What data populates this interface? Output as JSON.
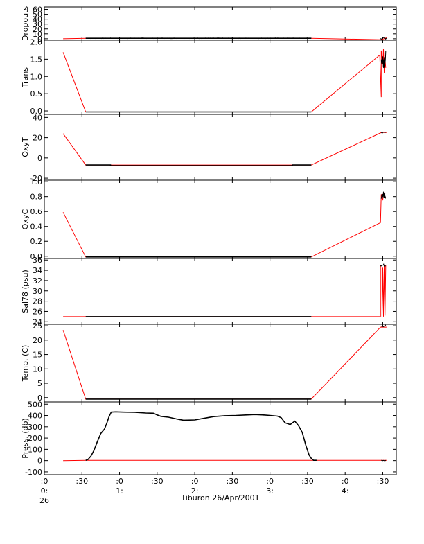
{
  "chart_data": {
    "type": "line",
    "title": "",
    "xlabel": "Tiburon 26/Apr/2001",
    "x_unit": "hours",
    "xlim": [
      0,
      4.68
    ],
    "x_ticks": [
      {
        "x": 0.0,
        "label": [
          ":0",
          "0:",
          "26"
        ]
      },
      {
        "x": 0.5,
        "label": [
          ":30"
        ]
      },
      {
        "x": 1.0,
        "label": [
          ":0",
          "1:"
        ]
      },
      {
        "x": 1.5,
        "label": [
          ":30"
        ]
      },
      {
        "x": 2.0,
        "label": [
          ":0",
          "2:"
        ]
      },
      {
        "x": 2.5,
        "label": [
          ":30"
        ]
      },
      {
        "x": 3.0,
        "label": [
          ":0",
          "3:"
        ]
      },
      {
        "x": 3.5,
        "label": [
          ":30"
        ]
      },
      {
        "x": 4.0,
        "label": [
          ":0",
          "4:"
        ]
      },
      {
        "x": 4.5,
        "label": [
          ":30"
        ]
      }
    ],
    "grid": false,
    "colors": {
      "measured": "#000000",
      "interpolated": "#ff0000"
    },
    "panels": [
      {
        "ylabel": "Dropouts",
        "ylim": [
          -3,
          65
        ],
        "yticks": [
          0,
          10,
          20,
          30,
          40,
          50,
          60
        ],
        "yticklabels": [
          "0",
          "10",
          "20",
          "30",
          "40",
          "50",
          "60"
        ],
        "interpolated": [
          [
            0.25,
            0
          ],
          [
            0.55,
            1
          ],
          [
            3.55,
            1
          ],
          [
            4.48,
            -2
          ],
          [
            4.55,
            2
          ]
        ],
        "measured": [
          [
            0.55,
            1
          ],
          [
            3.55,
            1
          ]
        ],
        "noise": {
          "x0": 0.55,
          "x1": 3.55,
          "base": 1,
          "amp": 0.8,
          "n": 300
        },
        "burst": {
          "x0": 4.46,
          "x1": 4.55,
          "base": 1,
          "amp": 2,
          "n": 12
        }
      },
      {
        "ylabel": "Trans",
        "ylim": [
          -0.1,
          2.05
        ],
        "yticks": [
          0,
          0.5,
          1.0,
          1.5,
          2.0
        ],
        "yticklabels": [
          "0.0",
          "0.5",
          "1.0",
          "1.5",
          "2.0"
        ],
        "interpolated": [
          [
            0.25,
            1.7
          ],
          [
            0.55,
            -0.03
          ],
          [
            3.55,
            -0.03
          ],
          [
            4.46,
            1.62
          ],
          [
            4.48,
            0.4
          ],
          [
            4.48,
            1.75
          ],
          [
            4.5,
            1.35
          ],
          [
            4.51,
            1.8
          ],
          [
            4.52,
            1.1
          ],
          [
            4.53,
            1.5
          ],
          [
            4.54,
            1.25
          ]
        ],
        "measured": [
          [
            0.55,
            -0.03
          ],
          [
            3.55,
            -0.03
          ]
        ],
        "burst": {
          "x0": 4.48,
          "x1": 4.54,
          "base": 1.5,
          "amp": 0.25,
          "n": 20
        }
      },
      {
        "ylabel": "OxyT",
        "ylim": [
          -22,
          43
        ],
        "yticks": [
          -20,
          0,
          20,
          40
        ],
        "yticklabels": [
          "-20",
          "0",
          "20",
          "40"
        ],
        "interpolated": [
          [
            0.25,
            24
          ],
          [
            0.55,
            -7
          ],
          [
            3.55,
            -7
          ],
          [
            4.48,
            25
          ],
          [
            4.55,
            25
          ]
        ],
        "measured": [
          [
            0.55,
            -7
          ],
          [
            0.88,
            -7
          ],
          [
            0.88,
            -7.6
          ],
          [
            3.3,
            -7.6
          ],
          [
            3.3,
            -7
          ],
          [
            3.55,
            -7
          ]
        ],
        "burst": {
          "x0": 4.48,
          "x1": 4.54,
          "base": 25,
          "amp": 0.5,
          "n": 8
        }
      },
      {
        "ylabel": "OxyC",
        "ylim": [
          -0.03,
          1.02
        ],
        "yticks": [
          0,
          0.2,
          0.4,
          0.6,
          0.8,
          1.0
        ],
        "yticklabels": [
          "0.0",
          "0.2",
          "0.4",
          "0.6",
          "0.8",
          "1.0"
        ],
        "interpolated": [
          [
            0.25,
            0.59
          ],
          [
            0.55,
            -0.01
          ],
          [
            3.55,
            -0.01
          ],
          [
            4.47,
            0.45
          ],
          [
            4.48,
            0.83
          ],
          [
            4.5,
            0.75
          ],
          [
            4.51,
            0.86
          ],
          [
            4.52,
            0.78
          ],
          [
            4.53,
            0.84
          ]
        ],
        "measured": [
          [
            0.55,
            -0.01
          ],
          [
            3.55,
            -0.01
          ]
        ],
        "burst": {
          "x0": 4.48,
          "x1": 4.54,
          "base": 0.82,
          "amp": 0.05,
          "n": 14
        }
      },
      {
        "ylabel": "Sal78 (psu)",
        "ylim": [
          23.5,
          36.3
        ],
        "yticks": [
          24,
          26,
          28,
          30,
          32,
          34,
          36
        ],
        "yticklabels": [
          "24",
          "26",
          "28",
          "30",
          "32",
          "34",
          "36"
        ],
        "interpolated": [
          [
            0.25,
            25
          ],
          [
            0.55,
            25
          ],
          [
            3.55,
            25
          ],
          [
            4.47,
            25
          ],
          [
            4.47,
            35
          ],
          [
            4.49,
            35
          ],
          [
            4.49,
            25
          ],
          [
            4.5,
            34.5
          ],
          [
            4.51,
            25
          ],
          [
            4.52,
            35
          ],
          [
            4.53,
            25.2
          ],
          [
            4.54,
            35
          ]
        ],
        "measured": [
          [
            0.55,
            25
          ],
          [
            3.55,
            25
          ]
        ],
        "burst": {
          "x0": 4.47,
          "x1": 4.54,
          "base": 35,
          "amp": 0.2,
          "n": 10
        }
      },
      {
        "ylabel": "Temp. (C)",
        "ylim": [
          -1.5,
          25.5
        ],
        "yticks": [
          0,
          5,
          10,
          15,
          20,
          25
        ],
        "yticklabels": [
          "0",
          "5",
          "10",
          "15",
          "20",
          "25"
        ],
        "interpolated": [
          [
            0.25,
            23.5
          ],
          [
            0.55,
            -0.5
          ],
          [
            3.55,
            -0.5
          ],
          [
            4.47,
            24.5
          ],
          [
            4.55,
            24.5
          ]
        ],
        "measured": [
          [
            0.55,
            -0.5
          ],
          [
            3.55,
            -0.5
          ]
        ],
        "burst": {
          "x0": 4.48,
          "x1": 4.54,
          "base": 25,
          "amp": 0.4,
          "n": 8
        }
      },
      {
        "ylabel": "Press. (db)",
        "ylim": [
          -125,
          520
        ],
        "yticks": [
          -100,
          0,
          100,
          200,
          300,
          400,
          500
        ],
        "yticklabels": [
          "-100",
          "0",
          "100",
          "200",
          "300",
          "400",
          "500"
        ],
        "interpolated": [
          [
            0.25,
            0
          ],
          [
            0.55,
            3
          ],
          [
            3.53,
            3
          ],
          [
            4.48,
            3
          ],
          [
            4.55,
            3
          ]
        ],
        "measured": [
          [
            0.55,
            3
          ],
          [
            0.58,
            10
          ],
          [
            0.62,
            40
          ],
          [
            0.66,
            90
          ],
          [
            0.7,
            160
          ],
          [
            0.75,
            240
          ],
          [
            0.8,
            280
          ],
          [
            0.83,
            330
          ],
          [
            0.86,
            390
          ],
          [
            0.89,
            430
          ],
          [
            0.95,
            432
          ],
          [
            1.05,
            430
          ],
          [
            1.2,
            428
          ],
          [
            1.35,
            422
          ],
          [
            1.45,
            420
          ],
          [
            1.5,
            405
          ],
          [
            1.55,
            392
          ],
          [
            1.65,
            385
          ],
          [
            1.75,
            370
          ],
          [
            1.85,
            358
          ],
          [
            2.0,
            360
          ],
          [
            2.1,
            372
          ],
          [
            2.25,
            390
          ],
          [
            2.4,
            398
          ],
          [
            2.55,
            400
          ],
          [
            2.7,
            405
          ],
          [
            2.8,
            408
          ],
          [
            2.9,
            405
          ],
          [
            3.0,
            400
          ],
          [
            3.1,
            394
          ],
          [
            3.15,
            380
          ],
          [
            3.2,
            335
          ],
          [
            3.27,
            320
          ],
          [
            3.33,
            350
          ],
          [
            3.38,
            310
          ],
          [
            3.43,
            250
          ],
          [
            3.48,
            130
          ],
          [
            3.52,
            50
          ],
          [
            3.55,
            20
          ],
          [
            3.58,
            3
          ],
          [
            3.62,
            3
          ]
        ],
        "noise": {
          "x0": 0.9,
          "x1": 3.1,
          "base": 0,
          "amp": 3,
          "n": 0
        },
        "burst": {
          "x0": 4.48,
          "x1": 4.54,
          "base": 0,
          "amp": 4,
          "n": 8
        }
      }
    ]
  }
}
